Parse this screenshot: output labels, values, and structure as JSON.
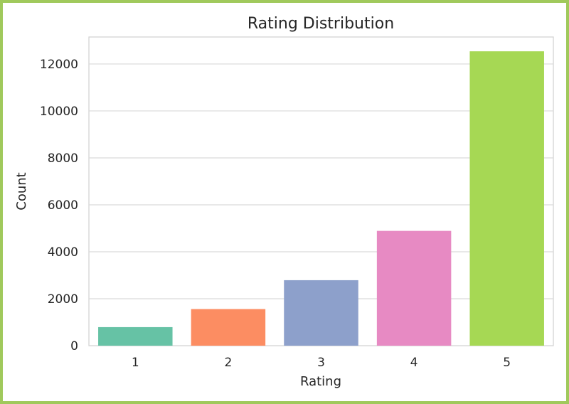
{
  "chart_data": {
    "type": "bar",
    "title": "Rating Distribution",
    "xlabel": "Rating",
    "ylabel": "Count",
    "categories": [
      "1",
      "2",
      "3",
      "4",
      "5"
    ],
    "values": [
      790,
      1560,
      2790,
      4890,
      12540
    ],
    "colors": [
      "#66c2a5",
      "#fc8d62",
      "#8da0cb",
      "#e78ac3",
      "#a6d854"
    ],
    "ylim": [
      0,
      13150
    ],
    "yticks": [
      0,
      2000,
      4000,
      6000,
      8000,
      10000,
      12000
    ],
    "ytick_labels": [
      "0",
      "2000",
      "4000",
      "6000",
      "8000",
      "10000",
      "12000"
    ],
    "grid": true,
    "legend": "none"
  },
  "frame_color": "#a0c95c"
}
